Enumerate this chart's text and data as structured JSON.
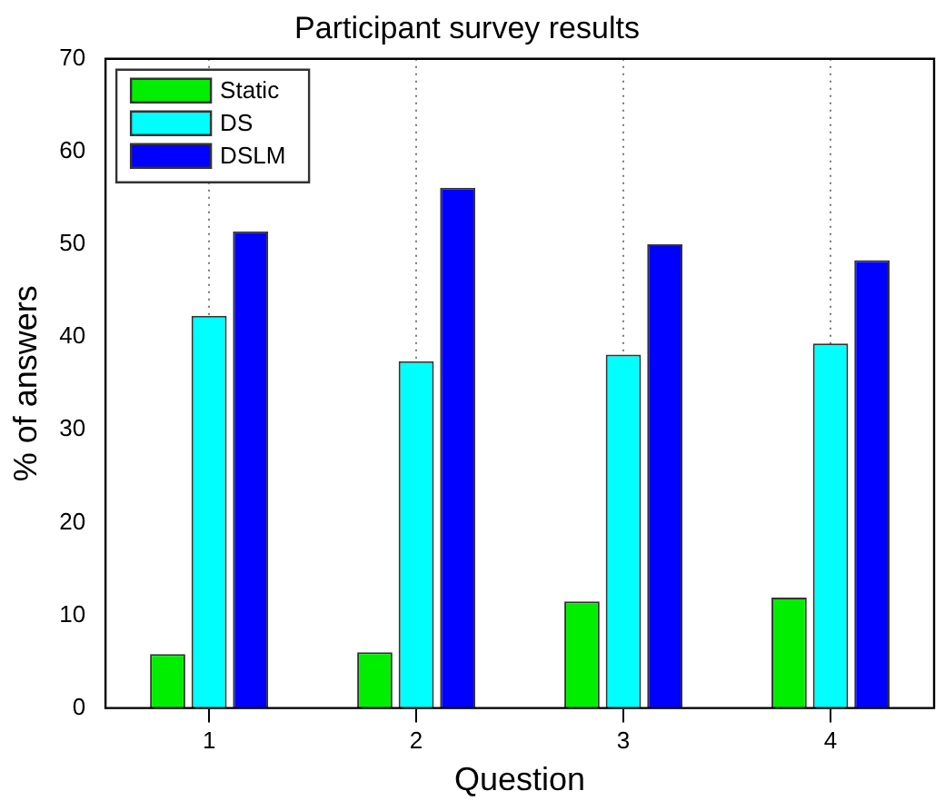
{
  "chart_data": {
    "type": "bar",
    "title": "Participant survey results",
    "xlabel": "Question",
    "ylabel": "% of answers",
    "categories": [
      "1",
      "2",
      "3",
      "4"
    ],
    "series": [
      {
        "name": "Static",
        "color": "#00ee00",
        "values": [
          5.8,
          6.0,
          11.5,
          11.9
        ]
      },
      {
        "name": "DS",
        "color": "#00ffff",
        "values": [
          42.3,
          37.4,
          38.1,
          39.3
        ]
      },
      {
        "name": "DSLM",
        "color": "#0000ff",
        "values": [
          51.4,
          56.1,
          50.0,
          48.3
        ]
      }
    ],
    "ylim": [
      0,
      70
    ],
    "yticks": [
      0,
      10,
      20,
      30,
      40,
      50,
      60,
      70
    ],
    "grid": "x",
    "legend": "top left"
  }
}
